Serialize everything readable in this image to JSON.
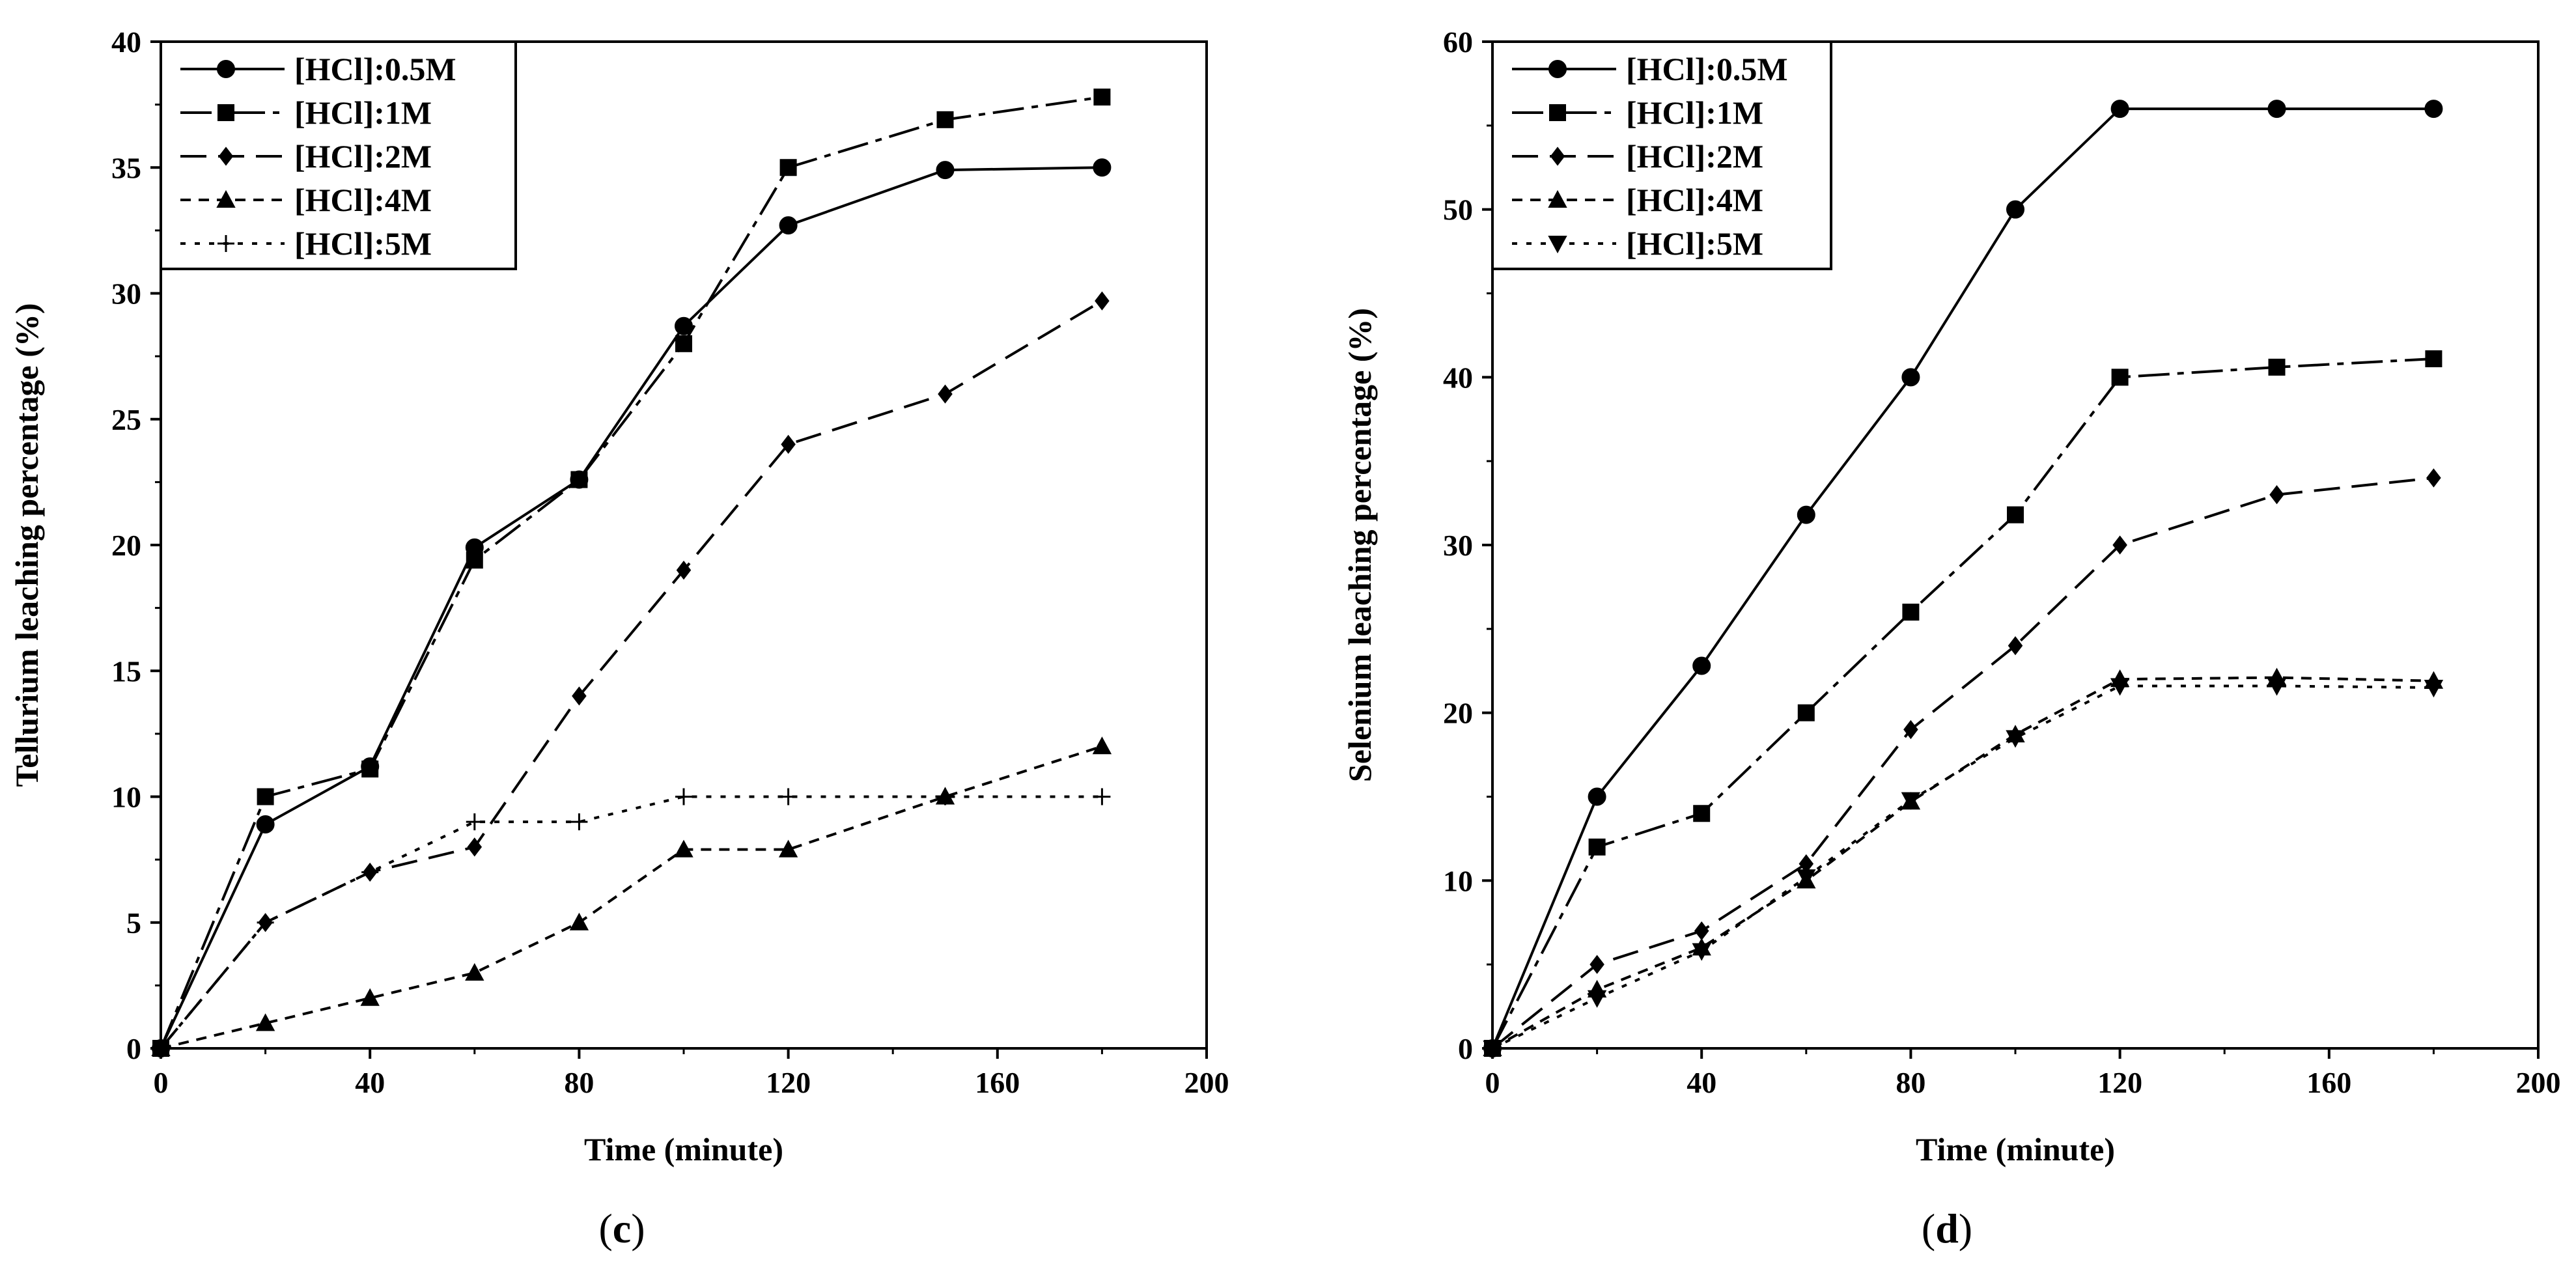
{
  "chart_data": [
    {
      "type": "line",
      "panel_label": "c",
      "xlabel": "Time (minute)",
      "ylabel": "Tellurium leaching percentage (%)",
      "xlim": [
        0,
        200
      ],
      "ylim": [
        0,
        40
      ],
      "xticks": [
        0,
        40,
        80,
        120,
        160,
        200
      ],
      "yticks": [
        0,
        5,
        10,
        15,
        20,
        25,
        30,
        35,
        40
      ],
      "legend_position": "top-left",
      "series": [
        {
          "name": "[HCl]:0.5M",
          "marker": "circle",
          "dash": "solid",
          "x": [
            0,
            20,
            40,
            60,
            80,
            100,
            120,
            150,
            180
          ],
          "values": [
            0,
            8.9,
            11.2,
            19.9,
            22.6,
            28.7,
            32.7,
            34.9,
            35.0
          ]
        },
        {
          "name": "[HCl]:1M",
          "marker": "square",
          "dash": "longdash",
          "x": [
            0,
            20,
            40,
            60,
            80,
            100,
            120,
            150,
            180
          ],
          "values": [
            0,
            10.0,
            11.1,
            19.4,
            22.6,
            28.0,
            35.0,
            36.9,
            37.8
          ]
        },
        {
          "name": "[HCl]:2M",
          "marker": "diamond",
          "dash": "dash",
          "x": [
            0,
            20,
            40,
            60,
            80,
            100,
            120,
            150,
            180
          ],
          "values": [
            0,
            5.0,
            7.0,
            8.0,
            14.0,
            19.0,
            24.0,
            26.0,
            29.7
          ]
        },
        {
          "name": "[HCl]:4M",
          "marker": "triangle-up",
          "dash": "shortdash",
          "x": [
            0,
            20,
            40,
            60,
            80,
            100,
            120,
            150,
            180
          ],
          "values": [
            0,
            1.0,
            2.0,
            3.0,
            5.0,
            7.9,
            7.9,
            10.0,
            12.0
          ]
        },
        {
          "name": "[HCl]:5M",
          "marker": "plus",
          "dash": "dot",
          "x": [
            0,
            20,
            40,
            60,
            80,
            100,
            120,
            150,
            180
          ],
          "values": [
            0,
            5.0,
            7.0,
            9.0,
            9.0,
            10.0,
            10.0,
            10.0,
            10.0
          ]
        }
      ]
    },
    {
      "type": "line",
      "panel_label": "d",
      "xlabel": "Time (minute)",
      "ylabel": "Selenium leaching percentage (%)",
      "xlim": [
        0,
        200
      ],
      "ylim": [
        0,
        60
      ],
      "xticks": [
        0,
        40,
        80,
        120,
        160,
        200
      ],
      "yticks": [
        0,
        10,
        20,
        30,
        40,
        50,
        60
      ],
      "legend_position": "top-left",
      "series": [
        {
          "name": "[HCl]:0.5M",
          "marker": "circle",
          "dash": "solid",
          "x": [
            0,
            20,
            40,
            60,
            80,
            100,
            120,
            150,
            180
          ],
          "values": [
            0,
            15.0,
            22.8,
            31.8,
            40.0,
            50.0,
            56.0,
            56.0,
            56.0
          ]
        },
        {
          "name": "[HCl]:1M",
          "marker": "square",
          "dash": "longdash",
          "x": [
            0,
            20,
            40,
            60,
            80,
            100,
            120,
            150,
            180
          ],
          "values": [
            0,
            12.0,
            14.0,
            20.0,
            26.0,
            31.8,
            40.0,
            40.6,
            41.1
          ]
        },
        {
          "name": "[HCl]:2M",
          "marker": "diamond",
          "dash": "dash",
          "x": [
            0,
            20,
            40,
            60,
            80,
            100,
            120,
            150,
            180
          ],
          "values": [
            0,
            5.0,
            7.0,
            11.0,
            19.0,
            24.0,
            30.0,
            33.0,
            34.0
          ]
        },
        {
          "name": "[HCl]:4M",
          "marker": "triangle-up",
          "dash": "shortdash",
          "x": [
            0,
            20,
            40,
            60,
            80,
            100,
            120,
            150,
            180
          ],
          "values": [
            0,
            3.5,
            6.0,
            10.0,
            14.7,
            18.7,
            22.0,
            22.1,
            21.9
          ]
        },
        {
          "name": "[HCl]:5M",
          "marker": "triangle-down",
          "dash": "dot",
          "x": [
            0,
            20,
            40,
            60,
            80,
            100,
            120,
            150,
            180
          ],
          "values": [
            0,
            3.0,
            5.8,
            10.2,
            14.8,
            18.5,
            21.6,
            21.6,
            21.5
          ]
        }
      ]
    }
  ],
  "panels": {
    "left_label": "c",
    "right_label": "d"
  }
}
